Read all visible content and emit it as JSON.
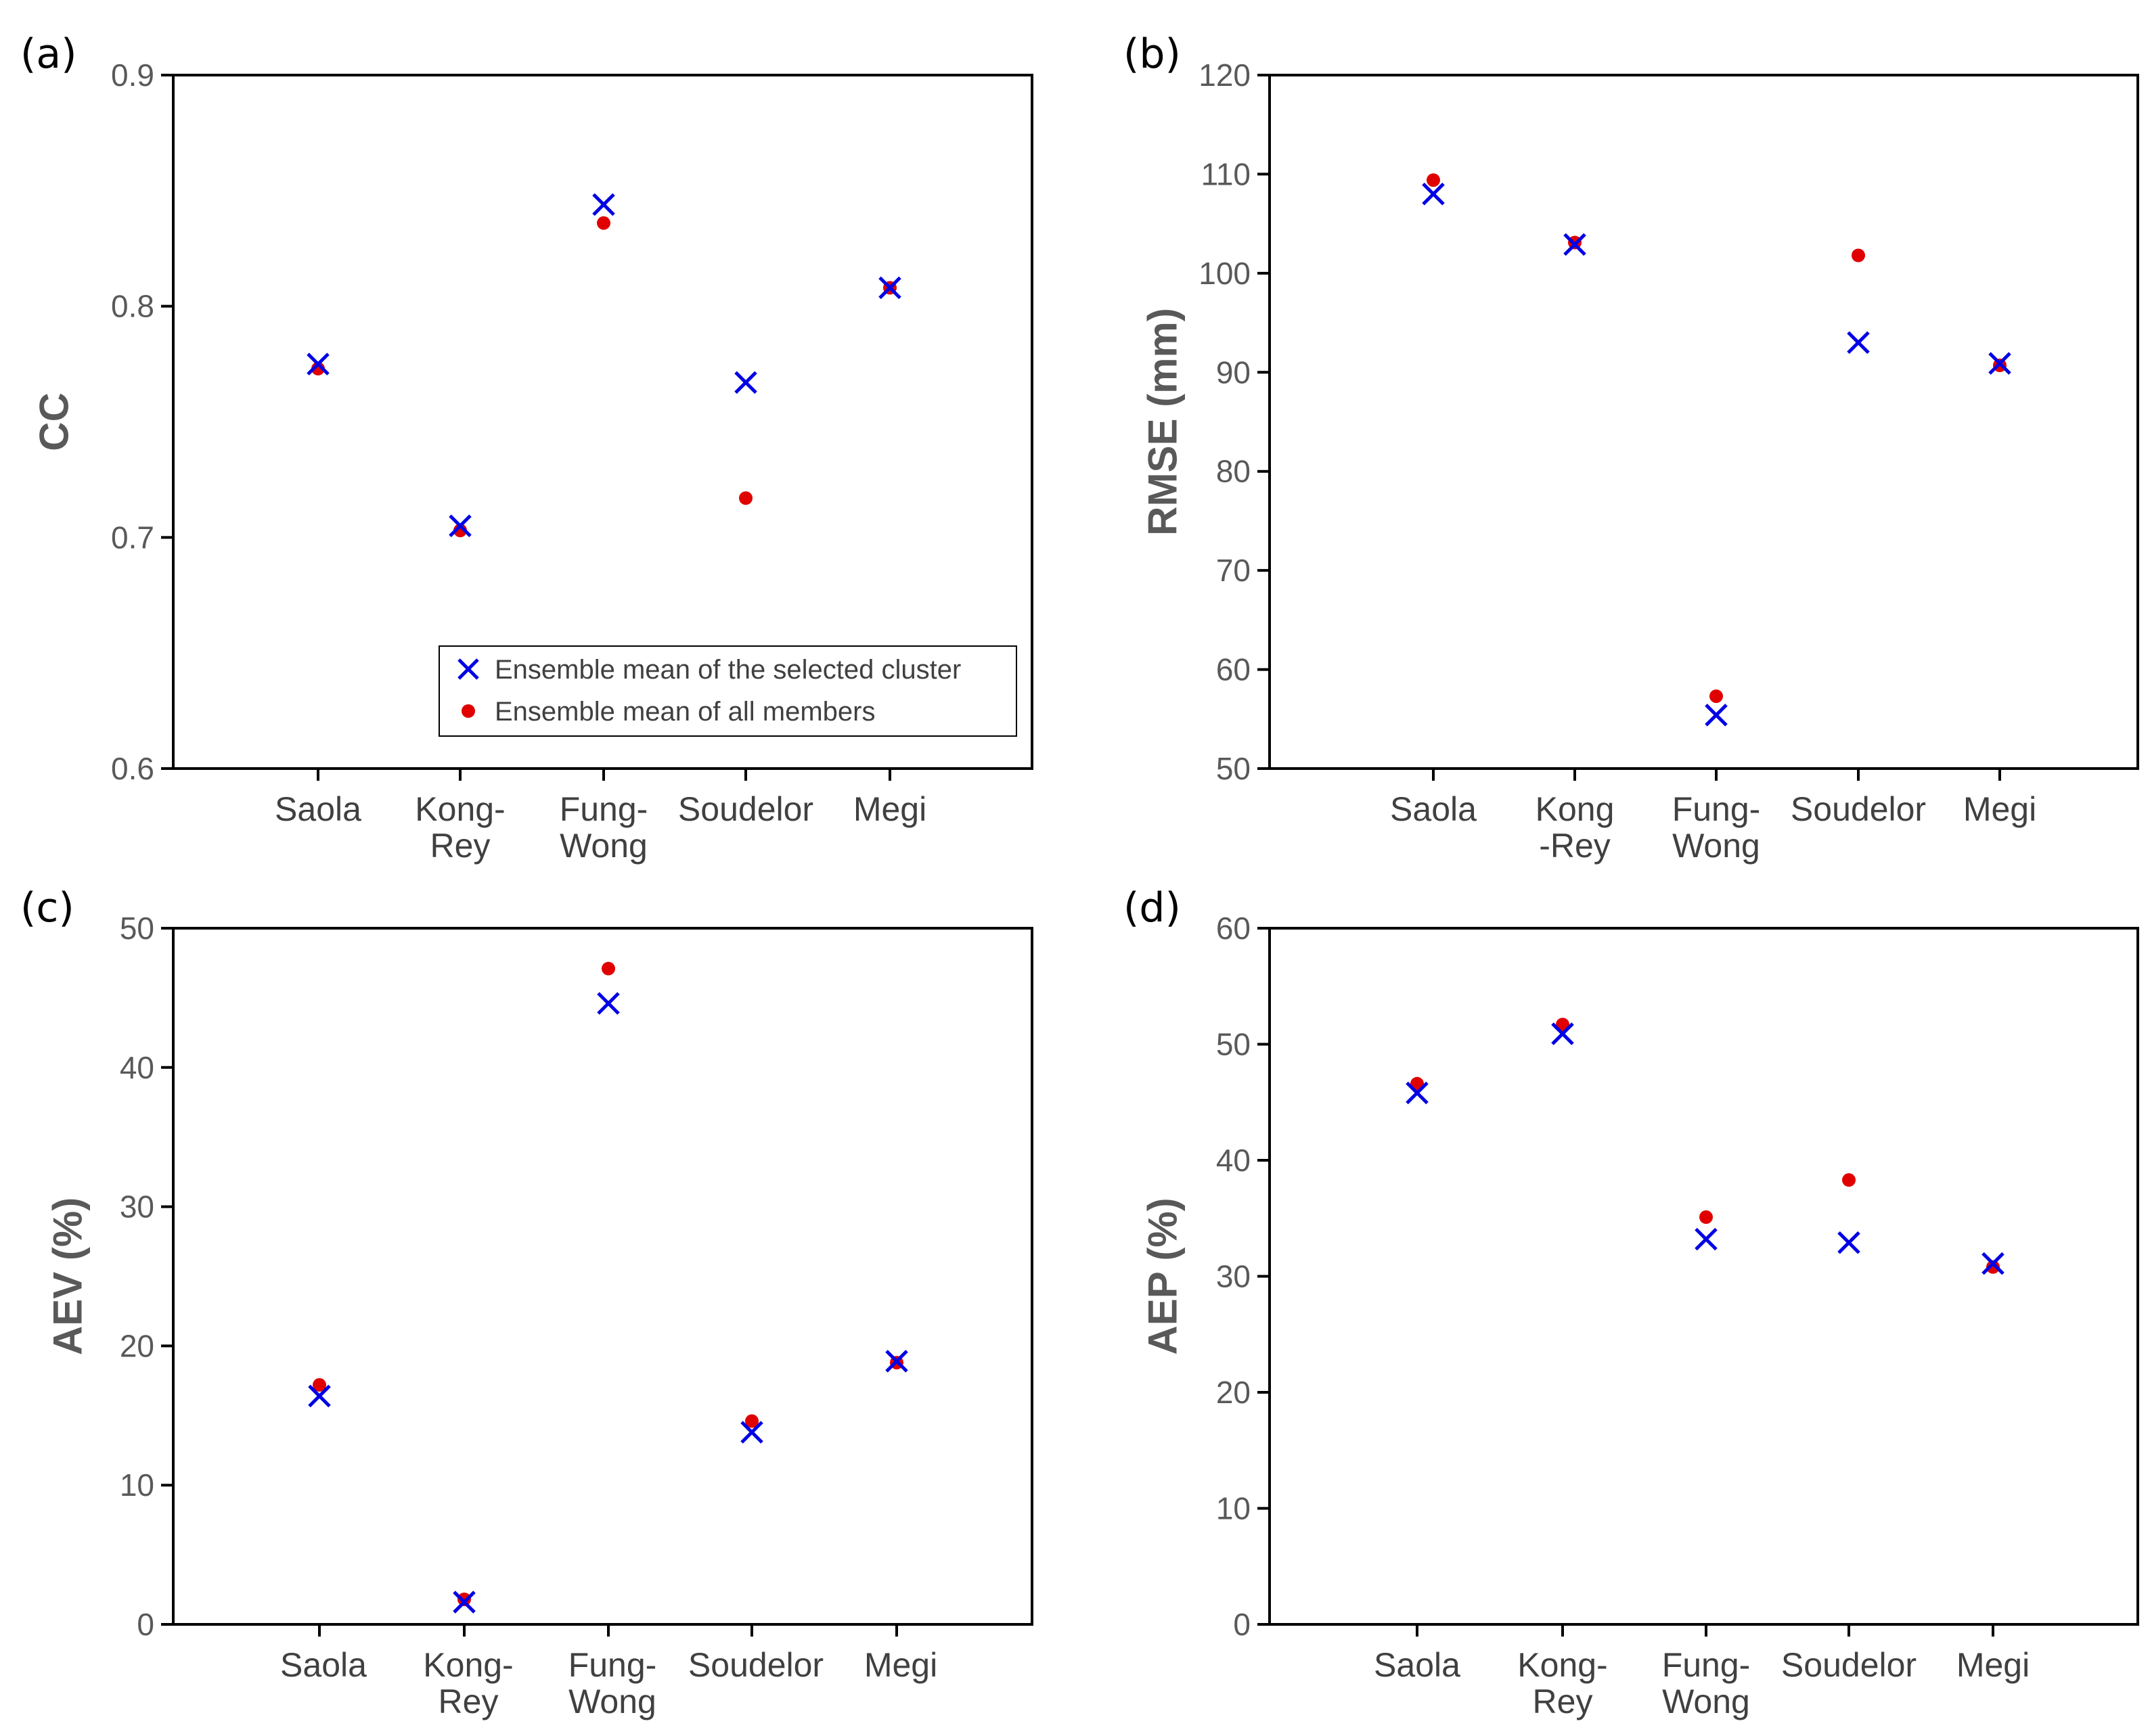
{
  "chart_data": [
    {
      "panel_label": "(a)",
      "type": "scatter",
      "ylabel": "CC",
      "ylim": [
        0.6,
        0.9
      ],
      "yticks": [
        "0.6",
        "0.7",
        "0.8",
        "0.9"
      ],
      "yticks_values": [
        0.6,
        0.7,
        0.8,
        0.9
      ],
      "categories": [
        [
          "Saola"
        ],
        [
          "Kong-",
          "Rey"
        ],
        [
          "Fung-",
          "Wong"
        ],
        [
          "Soudelor"
        ],
        [
          "Megi"
        ]
      ],
      "series": [
        {
          "name": "Ensemble mean of the selected cluster",
          "marker": "x",
          "color": "#0000e6",
          "values": [
            0.775,
            0.705,
            0.844,
            0.767,
            0.808
          ]
        },
        {
          "name": "Ensemble mean of all members",
          "marker": "dot",
          "color": "#e00000",
          "values": [
            0.773,
            0.703,
            0.836,
            0.717,
            0.808
          ]
        }
      ],
      "legend": {
        "position": "bottom-right",
        "entries": [
          "Ensemble mean of the selected cluster",
          "Ensemble mean of all members"
        ]
      }
    },
    {
      "panel_label": "(b)",
      "type": "scatter",
      "ylabel": "RMSE (mm)",
      "ylim": [
        50,
        120
      ],
      "yticks": [
        "50",
        "60",
        "70",
        "80",
        "90",
        "100",
        "110",
        "120"
      ],
      "yticks_values": [
        50,
        60,
        70,
        80,
        90,
        100,
        110,
        120
      ],
      "categories": [
        [
          "Saola"
        ],
        [
          "Kong",
          "-Rey"
        ],
        [
          "Fung-",
          "Wong"
        ],
        [
          "Soudelor"
        ],
        [
          "Megi"
        ]
      ],
      "series": [
        {
          "name": "Ensemble mean of the selected cluster",
          "marker": "x",
          "color": "#0000e6",
          "values": [
            108.0,
            102.9,
            55.4,
            93.0,
            90.9
          ]
        },
        {
          "name": "Ensemble mean of all members",
          "marker": "dot",
          "color": "#e00000",
          "values": [
            109.4,
            103.1,
            57.3,
            101.8,
            90.7
          ]
        }
      ]
    },
    {
      "panel_label": "(c)",
      "type": "scatter",
      "ylabel": "AEV (%)",
      "ylim": [
        0,
        50
      ],
      "yticks": [
        "0",
        "10",
        "20",
        "30",
        "40",
        "50"
      ],
      "yticks_values": [
        0,
        10,
        20,
        30,
        40,
        50
      ],
      "categories": [
        [
          "Saola"
        ],
        [
          "Kong-",
          "Rey"
        ],
        [
          "Fung-",
          "Wong"
        ],
        [
          "Soudelor"
        ],
        [
          "Megi"
        ]
      ],
      "series": [
        {
          "name": "Ensemble mean of the selected cluster",
          "marker": "x",
          "color": "#0000e6",
          "values": [
            16.4,
            1.6,
            44.6,
            13.8,
            18.9
          ]
        },
        {
          "name": "Ensemble mean of all members",
          "marker": "dot",
          "color": "#e00000",
          "values": [
            17.2,
            1.8,
            47.1,
            14.6,
            18.8
          ]
        }
      ]
    },
    {
      "panel_label": "(d)",
      "type": "scatter",
      "ylabel": "AEP (%)",
      "ylim": [
        0,
        60
      ],
      "yticks": [
        "0",
        "10",
        "20",
        "30",
        "40",
        "50",
        "60"
      ],
      "yticks_values": [
        0,
        10,
        20,
        30,
        40,
        50,
        60
      ],
      "categories": [
        [
          "Saola"
        ],
        [
          "Kong-",
          "Rey"
        ],
        [
          "Fung-",
          "Wong"
        ],
        [
          "Soudelor"
        ],
        [
          "Megi"
        ]
      ],
      "series": [
        {
          "name": "Ensemble mean of the selected cluster",
          "marker": "x",
          "color": "#0000e6",
          "values": [
            45.8,
            50.9,
            33.2,
            32.9,
            31.1
          ]
        },
        {
          "name": "Ensemble mean of all members",
          "marker": "dot",
          "color": "#e00000",
          "values": [
            46.6,
            51.7,
            35.1,
            38.3,
            30.8
          ]
        }
      ]
    }
  ]
}
